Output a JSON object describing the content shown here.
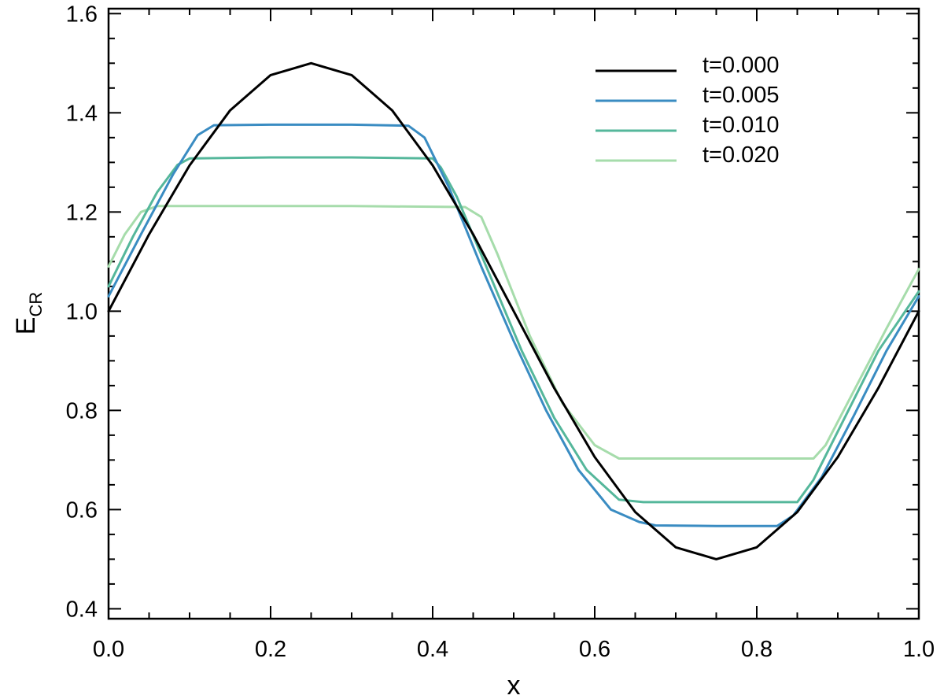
{
  "chart_data": {
    "type": "line",
    "xlabel": "x",
    "ylabel": "E",
    "ylabel_sub": "CR",
    "xlim": [
      0.0,
      1.0
    ],
    "ylim": [
      0.38,
      1.61
    ],
    "xticks": [
      0.0,
      0.2,
      0.4,
      0.6,
      0.8,
      1.0
    ],
    "xtick_labels": [
      "0.0",
      "0.2",
      "0.4",
      "0.6",
      "0.8",
      "1.0"
    ],
    "yticks": [
      0.4,
      0.6,
      0.8,
      1.0,
      1.2,
      1.4,
      1.6
    ],
    "ytick_labels": [
      "0.4",
      "0.6",
      "0.8",
      "1.0",
      "1.2",
      "1.4",
      "1.6"
    ],
    "grid": false,
    "legend_position": "top-right",
    "series": [
      {
        "name": "t=0.000",
        "color": "#000000",
        "x": [
          0.0,
          0.05,
          0.1,
          0.15,
          0.2,
          0.25,
          0.3,
          0.35,
          0.4,
          0.45,
          0.5,
          0.55,
          0.6,
          0.65,
          0.7,
          0.75,
          0.8,
          0.85,
          0.9,
          0.95,
          1.0
        ],
        "y": [
          1.0,
          1.155,
          1.294,
          1.405,
          1.476,
          1.5,
          1.476,
          1.405,
          1.294,
          1.155,
          1.0,
          0.845,
          0.706,
          0.595,
          0.524,
          0.5,
          0.524,
          0.595,
          0.706,
          0.845,
          1.0
        ]
      },
      {
        "name": "t=0.005",
        "color": "#3a8cc2",
        "x": [
          0.0,
          0.04,
          0.08,
          0.11,
          0.13,
          0.2,
          0.3,
          0.37,
          0.39,
          0.42,
          0.46,
          0.5,
          0.54,
          0.58,
          0.62,
          0.655,
          0.675,
          0.75,
          0.825,
          0.845,
          0.88,
          0.92,
          0.96,
          1.0
        ],
        "y": [
          1.03,
          1.155,
          1.277,
          1.355,
          1.375,
          1.376,
          1.376,
          1.374,
          1.35,
          1.25,
          1.09,
          0.94,
          0.8,
          0.68,
          0.6,
          0.575,
          0.568,
          0.567,
          0.567,
          0.588,
          0.665,
          0.79,
          0.92,
          1.03
        ]
      },
      {
        "name": "t=0.010",
        "color": "#55b79b",
        "x": [
          0.0,
          0.03,
          0.06,
          0.085,
          0.1,
          0.2,
          0.3,
          0.4,
          0.41,
          0.43,
          0.47,
          0.51,
          0.55,
          0.59,
          0.63,
          0.66,
          0.75,
          0.85,
          0.87,
          0.91,
          0.95,
          1.0
        ],
        "y": [
          1.05,
          1.15,
          1.24,
          1.295,
          1.308,
          1.31,
          1.31,
          1.308,
          1.29,
          1.23,
          1.075,
          0.92,
          0.785,
          0.68,
          0.62,
          0.615,
          0.615,
          0.615,
          0.66,
          0.79,
          0.92,
          1.04
        ]
      },
      {
        "name": "t=0.020",
        "color": "#a6dcab",
        "x": [
          0.0,
          0.02,
          0.04,
          0.06,
          0.15,
          0.3,
          0.44,
          0.46,
          0.48,
          0.52,
          0.56,
          0.6,
          0.63,
          0.75,
          0.87,
          0.885,
          0.92,
          0.96,
          1.0
        ],
        "y": [
          1.09,
          1.155,
          1.2,
          1.212,
          1.212,
          1.212,
          1.21,
          1.19,
          1.115,
          0.95,
          0.815,
          0.73,
          0.703,
          0.703,
          0.703,
          0.73,
          0.84,
          0.965,
          1.085
        ]
      }
    ]
  }
}
